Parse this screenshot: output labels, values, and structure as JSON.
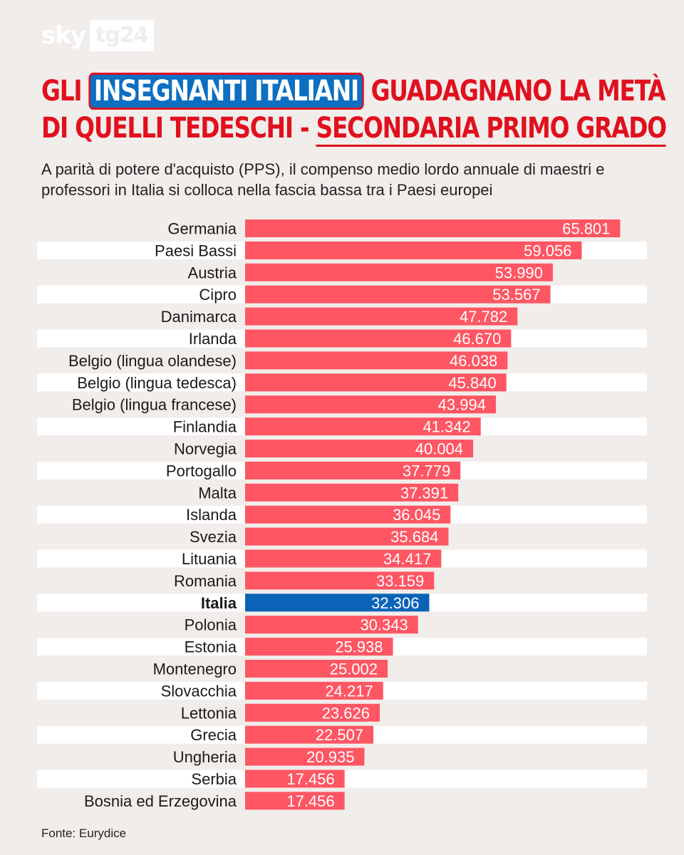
{
  "brand": {
    "sky": "sky",
    "tg": "tg24"
  },
  "header": {
    "title_line1_pre": "GLI ",
    "title_line1_highlight": "INSEGNANTI ITALIANI",
    "title_line1_post": " GUADAGNANO LA METÀ",
    "title_line2_pre": "DI QUELLI TEDESCHI - ",
    "title_line2_underline": "SECONDARIA PRIMO GRADO",
    "subtitle": "A parità di potere d'acquisto (PPS), il compenso medio lordo annuale di maestri e professori in Italia si colloca nella fascia bassa tra i Paesi europei"
  },
  "colors": {
    "bar": "#fe5663",
    "highlight": "#0b63b7",
    "row_band": "#ffffff",
    "text": "#1a1a1a"
  },
  "chart_data": {
    "type": "bar",
    "orientation": "horizontal",
    "title": "Gli insegnanti italiani guadagnano la metà di quelli tedeschi - Secondaria primo grado",
    "xlabel": "",
    "ylabel": "",
    "xlim": [
      0,
      70000
    ],
    "highlight": "Italia",
    "categories": [
      "Germania",
      "Paesi Bassi",
      "Austria",
      "Cipro",
      "Danimarca",
      "Irlanda",
      "Belgio (lingua olandese)",
      "Belgio (lingua tedesca)",
      "Belgio (lingua francese)",
      "Finlandia",
      "Norvegia",
      "Portogallo",
      "Malta",
      "Islanda",
      "Svezia",
      "Lituania",
      "Romania",
      "Italia",
      "Polonia",
      "Estonia",
      "Montenegro",
      "Slovacchia",
      "Lettonia",
      "Grecia",
      "Ungheria",
      "Serbia",
      "Bosnia ed Erzegovina"
    ],
    "values": [
      65801,
      59056,
      53990,
      53567,
      47782,
      46670,
      46038,
      45840,
      43994,
      41342,
      40004,
      37779,
      37391,
      36045,
      35684,
      34417,
      33159,
      32306,
      30343,
      25938,
      25002,
      24217,
      23626,
      22507,
      20935,
      17456,
      17456
    ],
    "labels": [
      "65.801",
      "59.056",
      "53.990",
      "53.567",
      "47.782",
      "46.670",
      "46.038",
      "45.840",
      "43.994",
      "41.342",
      "40.004",
      "37.779",
      "37.391",
      "36.045",
      "35.684",
      "34.417",
      "33.159",
      "32.306",
      "30.343",
      "25.938",
      "25.002",
      "24.217",
      "23.626",
      "22.507",
      "20.935",
      "17.456",
      "17.456"
    ]
  },
  "footer": {
    "source": "Fonte: Eurydice"
  }
}
